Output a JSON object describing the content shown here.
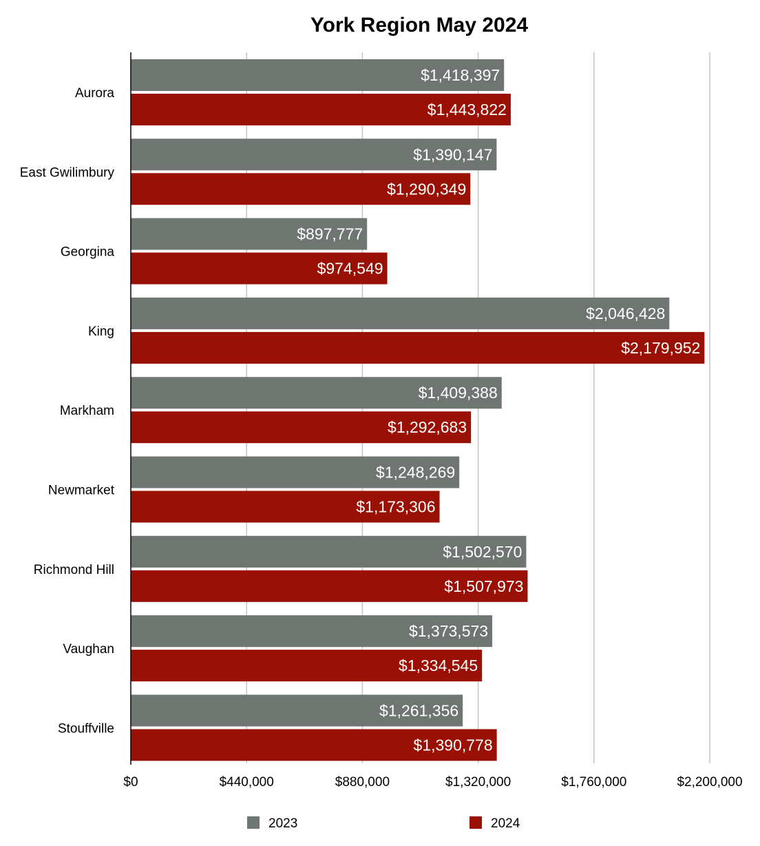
{
  "chart_data": {
    "type": "bar",
    "orientation": "horizontal",
    "title": "York Region May 2024",
    "categories": [
      "Aurora",
      "East Gwilimbury",
      "Georgina",
      "King",
      "Markham",
      "Newmarket",
      "Richmond Hill",
      "Vaughan",
      "Stouffville"
    ],
    "series": [
      {
        "name": "2023",
        "color": "#6f7571",
        "values": [
          1418397,
          1390147,
          897777,
          2046428,
          1409388,
          1248269,
          1502570,
          1373573,
          1261356
        ],
        "labels": [
          "$1,418,397",
          "$1,390,147",
          "$897,777",
          "$2,046,428",
          "$1,409,388",
          "$1,248,269",
          "$1,502,570",
          "$1,373,573",
          "$1,261,356"
        ]
      },
      {
        "name": "2024",
        "color": "#9b1004",
        "values": [
          1443822,
          1290349,
          974549,
          2179952,
          1292683,
          1173306,
          1507973,
          1334545,
          1390778
        ],
        "labels": [
          "$1,443,822",
          "$1,290,349",
          "$974,549",
          "$2,179,952",
          "$1,292,683",
          "$1,173,306",
          "$1,507,973",
          "$1,334,545",
          "$1,390,778"
        ]
      }
    ],
    "xlim": [
      0,
      2200000
    ],
    "xticks": [
      0,
      440000,
      880000,
      1320000,
      1760000,
      2200000
    ],
    "xtick_labels": [
      "$0",
      "$440,000",
      "$880,000",
      "$1,320,000",
      "$1,760,000",
      "$2,200,000"
    ],
    "grid": "vertical",
    "legend_position": "bottom",
    "gridline_color": "#c4c4c4",
    "label_color": "#ffffff"
  }
}
